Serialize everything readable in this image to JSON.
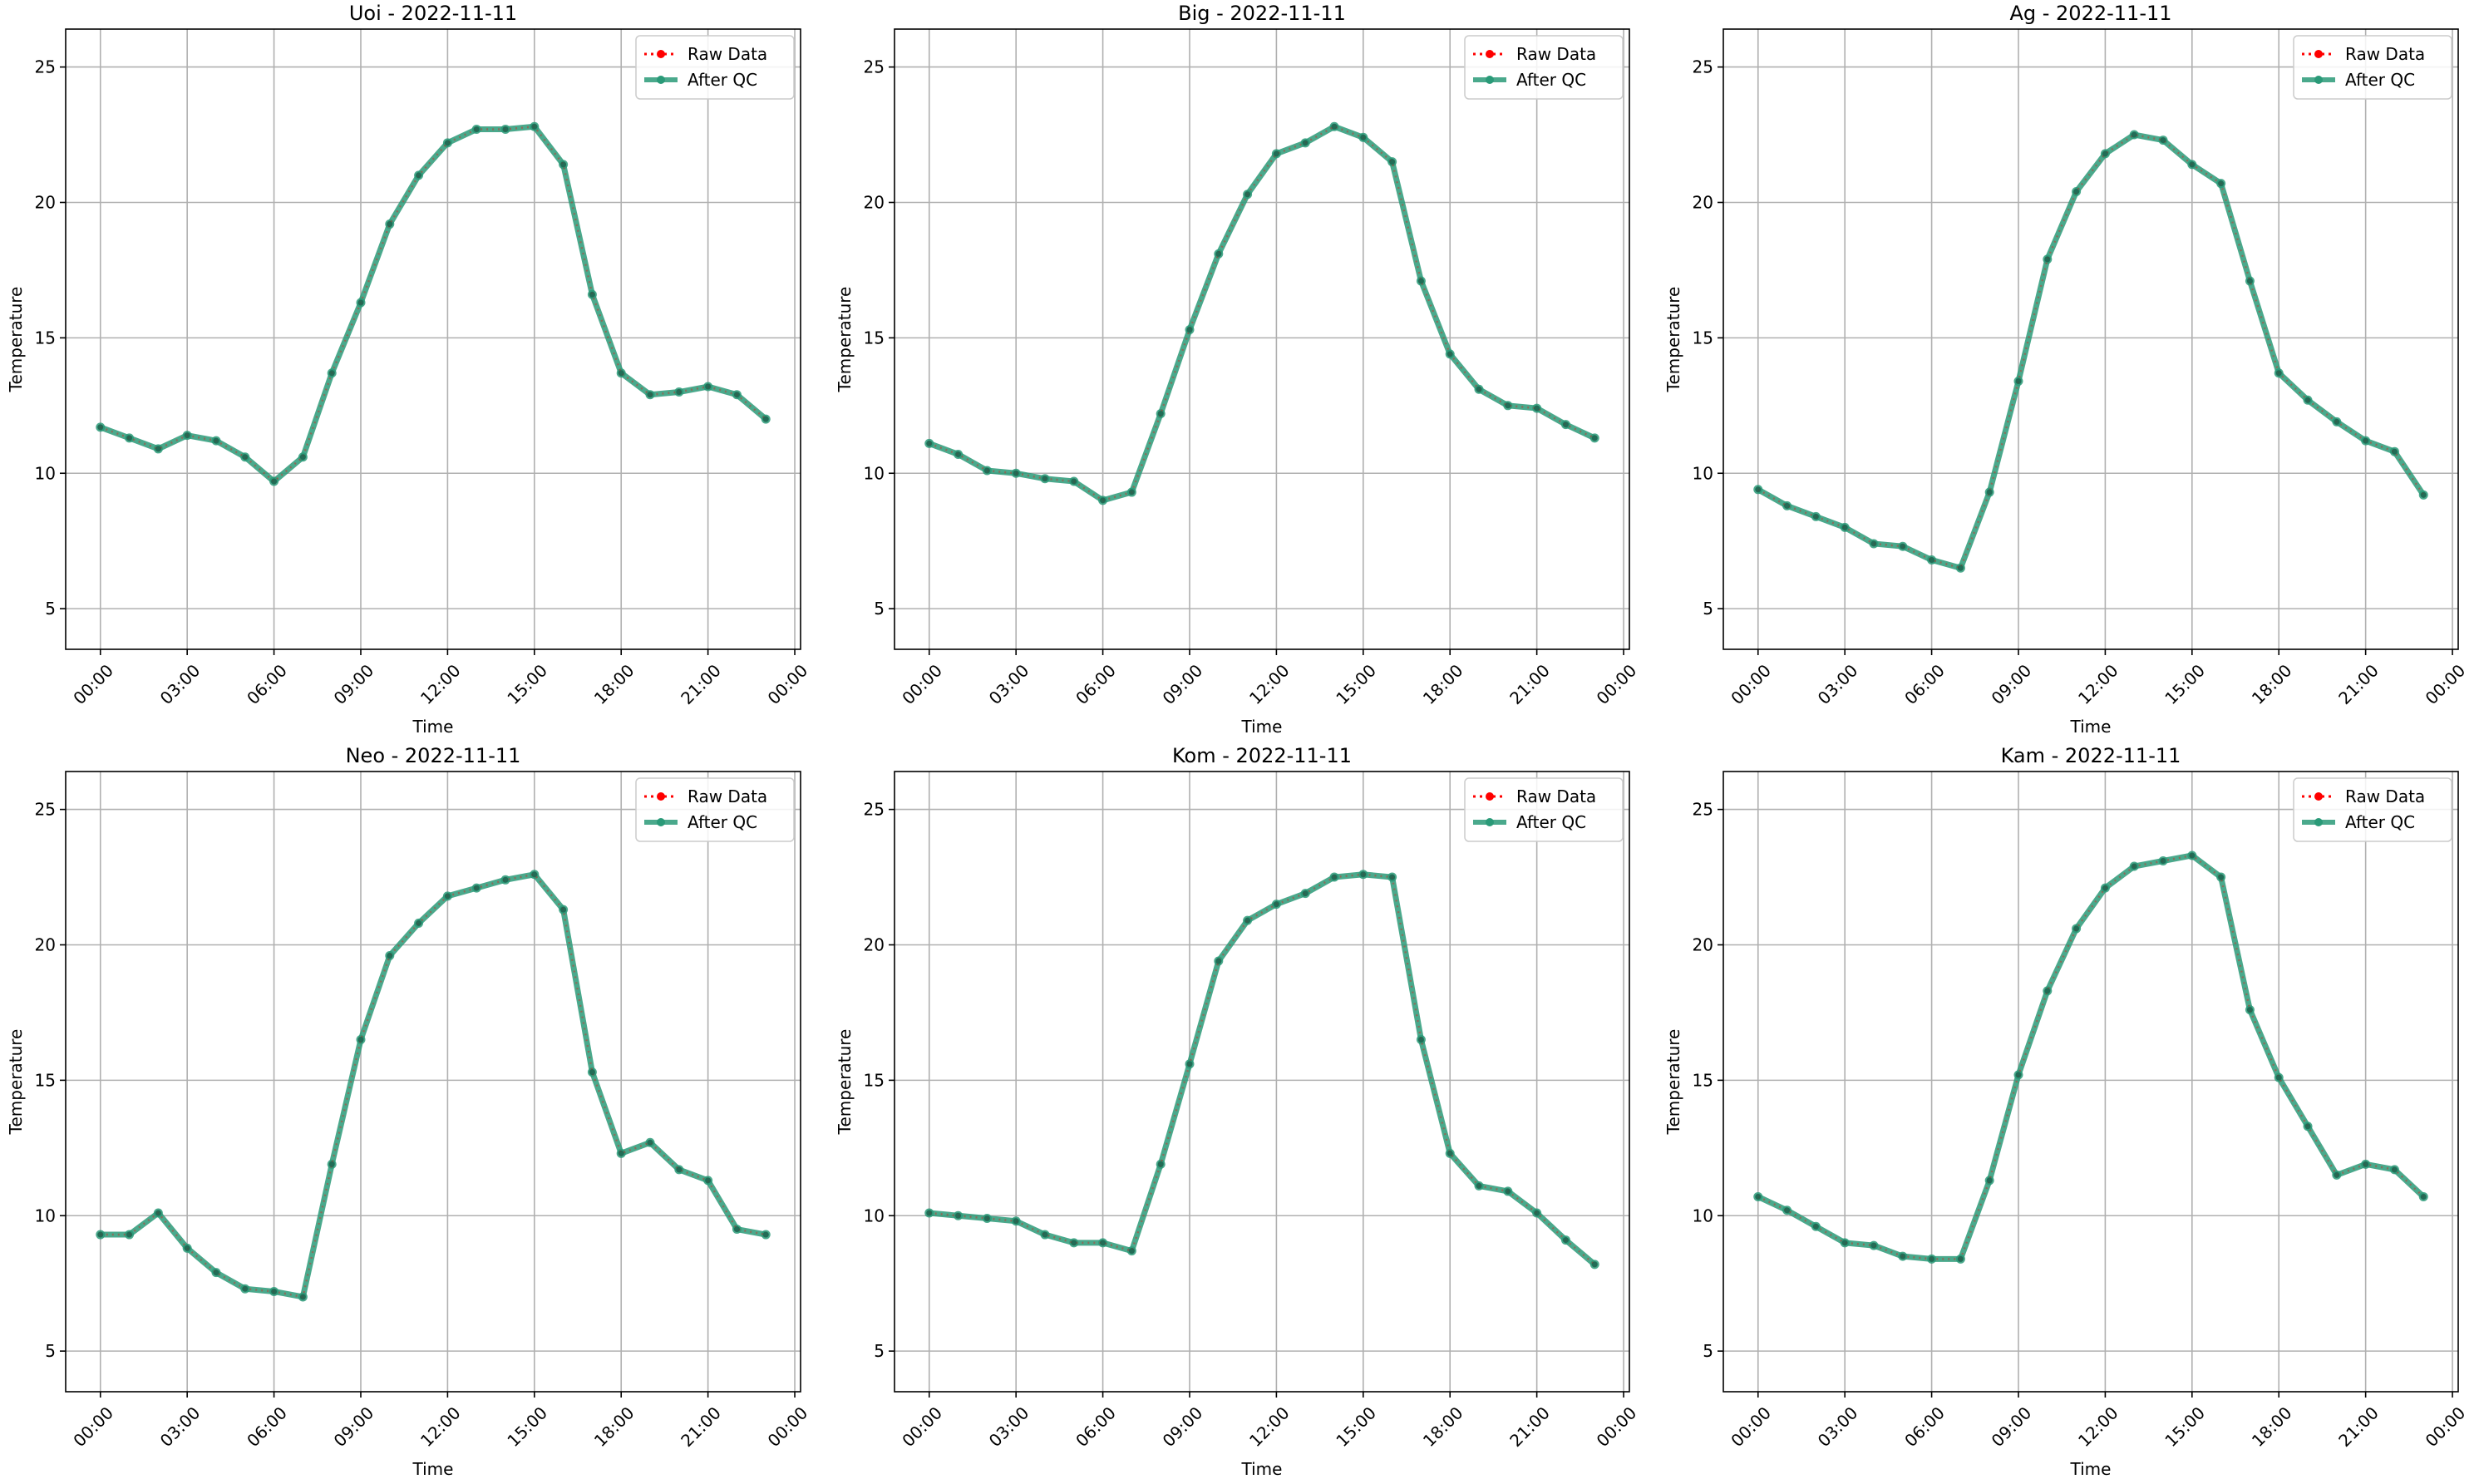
{
  "chart_data": [
    {
      "type": "line",
      "title": "Uoi - 2022-11-11",
      "xlabel": "Time",
      "ylabel": "Temperature",
      "x_tick_labels": [
        "00:00",
        "03:00",
        "06:00",
        "09:00",
        "12:00",
        "15:00",
        "18:00",
        "21:00",
        "00:00"
      ],
      "x_tick_hours": [
        0,
        3,
        6,
        9,
        12,
        15,
        18,
        21,
        24
      ],
      "y_ticks": [
        5,
        10,
        15,
        20,
        25
      ],
      "xlim_hours": [
        -1.2,
        24.2
      ],
      "ylim": [
        3.5,
        26.4
      ],
      "grid": true,
      "legend": "top-right",
      "legend_entries": [
        "Raw Data",
        "After QC"
      ],
      "x_hours": [
        0,
        1,
        2,
        3,
        4,
        5,
        6,
        7,
        8,
        9,
        10,
        11,
        12,
        13,
        14,
        15,
        16,
        17,
        18,
        19,
        20,
        21,
        22,
        23
      ],
      "series": [
        {
          "name": "Raw Data",
          "color": "#ff0000",
          "values": [
            11.7,
            11.3,
            10.9,
            11.4,
            11.2,
            10.6,
            9.7,
            10.6,
            13.7,
            16.3,
            19.2,
            21.0,
            22.2,
            22.7,
            22.7,
            22.8,
            21.4,
            16.6,
            13.7,
            12.9,
            13.0,
            13.2,
            12.9,
            12.0
          ]
        },
        {
          "name": "After QC",
          "color": "#2a9a78",
          "values": [
            11.7,
            11.3,
            10.9,
            11.4,
            11.2,
            10.6,
            9.7,
            10.6,
            13.7,
            16.3,
            19.2,
            21.0,
            22.2,
            22.7,
            22.7,
            22.8,
            21.4,
            16.6,
            13.7,
            12.9,
            13.0,
            13.2,
            12.9,
            12.0
          ]
        }
      ]
    },
    {
      "type": "line",
      "title": "Big - 2022-11-11",
      "xlabel": "Time",
      "ylabel": "Temperature",
      "x_tick_labels": [
        "00:00",
        "03:00",
        "06:00",
        "09:00",
        "12:00",
        "15:00",
        "18:00",
        "21:00",
        "00:00"
      ],
      "x_tick_hours": [
        0,
        3,
        6,
        9,
        12,
        15,
        18,
        21,
        24
      ],
      "y_ticks": [
        5,
        10,
        15,
        20,
        25
      ],
      "xlim_hours": [
        -1.2,
        24.2
      ],
      "ylim": [
        3.5,
        26.4
      ],
      "grid": true,
      "legend": "top-right",
      "legend_entries": [
        "Raw Data",
        "After QC"
      ],
      "x_hours": [
        0,
        1,
        2,
        3,
        4,
        5,
        6,
        7,
        8,
        9,
        10,
        11,
        12,
        13,
        14,
        15,
        16,
        17,
        18,
        19,
        20,
        21,
        22,
        23
      ],
      "series": [
        {
          "name": "Raw Data",
          "color": "#ff0000",
          "values": [
            11.1,
            10.7,
            10.1,
            10.0,
            9.8,
            9.7,
            9.0,
            9.3,
            12.2,
            15.3,
            18.1,
            20.3,
            21.8,
            22.2,
            22.8,
            22.4,
            21.5,
            17.1,
            14.4,
            13.1,
            12.5,
            12.4,
            11.8,
            11.3
          ]
        },
        {
          "name": "After QC",
          "color": "#2a9a78",
          "values": [
            11.1,
            10.7,
            10.1,
            10.0,
            9.8,
            9.7,
            9.0,
            9.3,
            12.2,
            15.3,
            18.1,
            20.3,
            21.8,
            22.2,
            22.8,
            22.4,
            21.5,
            17.1,
            14.4,
            13.1,
            12.5,
            12.4,
            11.8,
            11.3
          ]
        }
      ]
    },
    {
      "type": "line",
      "title": "Ag - 2022-11-11",
      "xlabel": "Time",
      "ylabel": "Temperature",
      "x_tick_labels": [
        "00:00",
        "03:00",
        "06:00",
        "09:00",
        "12:00",
        "15:00",
        "18:00",
        "21:00",
        "00:00"
      ],
      "x_tick_hours": [
        0,
        3,
        6,
        9,
        12,
        15,
        18,
        21,
        24
      ],
      "y_ticks": [
        5,
        10,
        15,
        20,
        25
      ],
      "xlim_hours": [
        -1.2,
        24.2
      ],
      "ylim": [
        3.5,
        26.4
      ],
      "grid": true,
      "legend": "top-right",
      "legend_entries": [
        "Raw Data",
        "After QC"
      ],
      "x_hours": [
        0,
        1,
        2,
        3,
        4,
        5,
        6,
        7,
        8,
        9,
        10,
        11,
        12,
        13,
        14,
        15,
        16,
        17,
        18,
        19,
        20,
        21,
        22,
        23
      ],
      "series": [
        {
          "name": "Raw Data",
          "color": "#ff0000",
          "values": [
            9.4,
            8.8,
            8.4,
            8.0,
            7.4,
            7.3,
            6.8,
            6.5,
            9.3,
            13.4,
            17.9,
            20.4,
            21.8,
            22.5,
            22.3,
            21.4,
            20.7,
            17.1,
            13.7,
            12.7,
            11.9,
            11.2,
            10.8,
            9.2
          ]
        },
        {
          "name": "After QC",
          "color": "#2a9a78",
          "values": [
            9.4,
            8.8,
            8.4,
            8.0,
            7.4,
            7.3,
            6.8,
            6.5,
            9.3,
            13.4,
            17.9,
            20.4,
            21.8,
            22.5,
            22.3,
            21.4,
            20.7,
            17.1,
            13.7,
            12.7,
            11.9,
            11.2,
            10.8,
            9.2
          ]
        }
      ]
    },
    {
      "type": "line",
      "title": "Neo - 2022-11-11",
      "xlabel": "Time",
      "ylabel": "Temperature",
      "x_tick_labels": [
        "00:00",
        "03:00",
        "06:00",
        "09:00",
        "12:00",
        "15:00",
        "18:00",
        "21:00",
        "00:00"
      ],
      "x_tick_hours": [
        0,
        3,
        6,
        9,
        12,
        15,
        18,
        21,
        24
      ],
      "y_ticks": [
        5,
        10,
        15,
        20,
        25
      ],
      "xlim_hours": [
        -1.2,
        24.2
      ],
      "ylim": [
        3.5,
        26.4
      ],
      "grid": true,
      "legend": "top-right",
      "legend_entries": [
        "Raw Data",
        "After QC"
      ],
      "x_hours": [
        0,
        1,
        2,
        3,
        4,
        5,
        6,
        7,
        8,
        9,
        10,
        11,
        12,
        13,
        14,
        15,
        16,
        17,
        18,
        19,
        20,
        21,
        22,
        23
      ],
      "series": [
        {
          "name": "Raw Data",
          "color": "#ff0000",
          "values": [
            9.3,
            9.3,
            10.1,
            8.8,
            7.9,
            7.3,
            7.2,
            7.0,
            11.9,
            16.5,
            19.6,
            20.8,
            21.8,
            22.1,
            22.4,
            22.6,
            21.3,
            15.3,
            12.3,
            12.7,
            11.7,
            11.3,
            9.5,
            9.3
          ]
        },
        {
          "name": "After QC",
          "color": "#2a9a78",
          "values": [
            9.3,
            9.3,
            10.1,
            8.8,
            7.9,
            7.3,
            7.2,
            7.0,
            11.9,
            16.5,
            19.6,
            20.8,
            21.8,
            22.1,
            22.4,
            22.6,
            21.3,
            15.3,
            12.3,
            12.7,
            11.7,
            11.3,
            9.5,
            9.3
          ]
        }
      ]
    },
    {
      "type": "line",
      "title": "Kom - 2022-11-11",
      "xlabel": "Time",
      "ylabel": "Temperature",
      "x_tick_labels": [
        "00:00",
        "03:00",
        "06:00",
        "09:00",
        "12:00",
        "15:00",
        "18:00",
        "21:00",
        "00:00"
      ],
      "x_tick_hours": [
        0,
        3,
        6,
        9,
        12,
        15,
        18,
        21,
        24
      ],
      "y_ticks": [
        5,
        10,
        15,
        20,
        25
      ],
      "xlim_hours": [
        -1.2,
        24.2
      ],
      "ylim": [
        3.5,
        26.4
      ],
      "grid": true,
      "legend": "top-right",
      "legend_entries": [
        "Raw Data",
        "After QC"
      ],
      "x_hours": [
        0,
        1,
        2,
        3,
        4,
        5,
        6,
        7,
        8,
        9,
        10,
        11,
        12,
        13,
        14,
        15,
        16,
        17,
        18,
        19,
        20,
        21,
        22,
        23
      ],
      "series": [
        {
          "name": "Raw Data",
          "color": "#ff0000",
          "values": [
            10.1,
            10.0,
            9.9,
            9.8,
            9.3,
            9.0,
            9.0,
            8.7,
            11.9,
            15.6,
            19.4,
            20.9,
            21.5,
            21.9,
            22.5,
            22.6,
            22.5,
            16.5,
            12.3,
            11.1,
            10.9,
            10.1,
            9.1,
            8.2
          ]
        },
        {
          "name": "After QC",
          "color": "#2a9a78",
          "values": [
            10.1,
            10.0,
            9.9,
            9.8,
            9.3,
            9.0,
            9.0,
            8.7,
            11.9,
            15.6,
            19.4,
            20.9,
            21.5,
            21.9,
            22.5,
            22.6,
            22.5,
            16.5,
            12.3,
            11.1,
            10.9,
            10.1,
            9.1,
            8.2
          ]
        }
      ]
    },
    {
      "type": "line",
      "title": "Kam - 2022-11-11",
      "xlabel": "Time",
      "ylabel": "Temperature",
      "x_tick_labels": [
        "00:00",
        "03:00",
        "06:00",
        "09:00",
        "12:00",
        "15:00",
        "18:00",
        "21:00",
        "00:00"
      ],
      "x_tick_hours": [
        0,
        3,
        6,
        9,
        12,
        15,
        18,
        21,
        24
      ],
      "y_ticks": [
        5,
        10,
        15,
        20,
        25
      ],
      "xlim_hours": [
        -1.2,
        24.2
      ],
      "ylim": [
        3.5,
        26.4
      ],
      "grid": true,
      "legend": "top-right",
      "legend_entries": [
        "Raw Data",
        "After QC"
      ],
      "x_hours": [
        0,
        1,
        2,
        3,
        4,
        5,
        6,
        7,
        8,
        9,
        10,
        11,
        12,
        13,
        14,
        15,
        16,
        17,
        18,
        19,
        20,
        21,
        22,
        23
      ],
      "series": [
        {
          "name": "Raw Data",
          "color": "#ff0000",
          "values": [
            10.7,
            10.2,
            9.6,
            9.0,
            8.9,
            8.5,
            8.4,
            8.4,
            11.3,
            15.2,
            18.3,
            20.6,
            22.1,
            22.9,
            23.1,
            23.3,
            22.5,
            17.6,
            15.1,
            13.3,
            11.5,
            11.9,
            11.7,
            10.7
          ]
        },
        {
          "name": "After QC",
          "color": "#2a9a78",
          "values": [
            10.7,
            10.2,
            9.6,
            9.0,
            8.9,
            8.5,
            8.4,
            8.4,
            11.3,
            15.2,
            18.3,
            20.6,
            22.1,
            22.9,
            23.1,
            23.3,
            22.5,
            17.6,
            15.1,
            13.3,
            11.5,
            11.9,
            11.7,
            10.7
          ]
        }
      ]
    }
  ]
}
